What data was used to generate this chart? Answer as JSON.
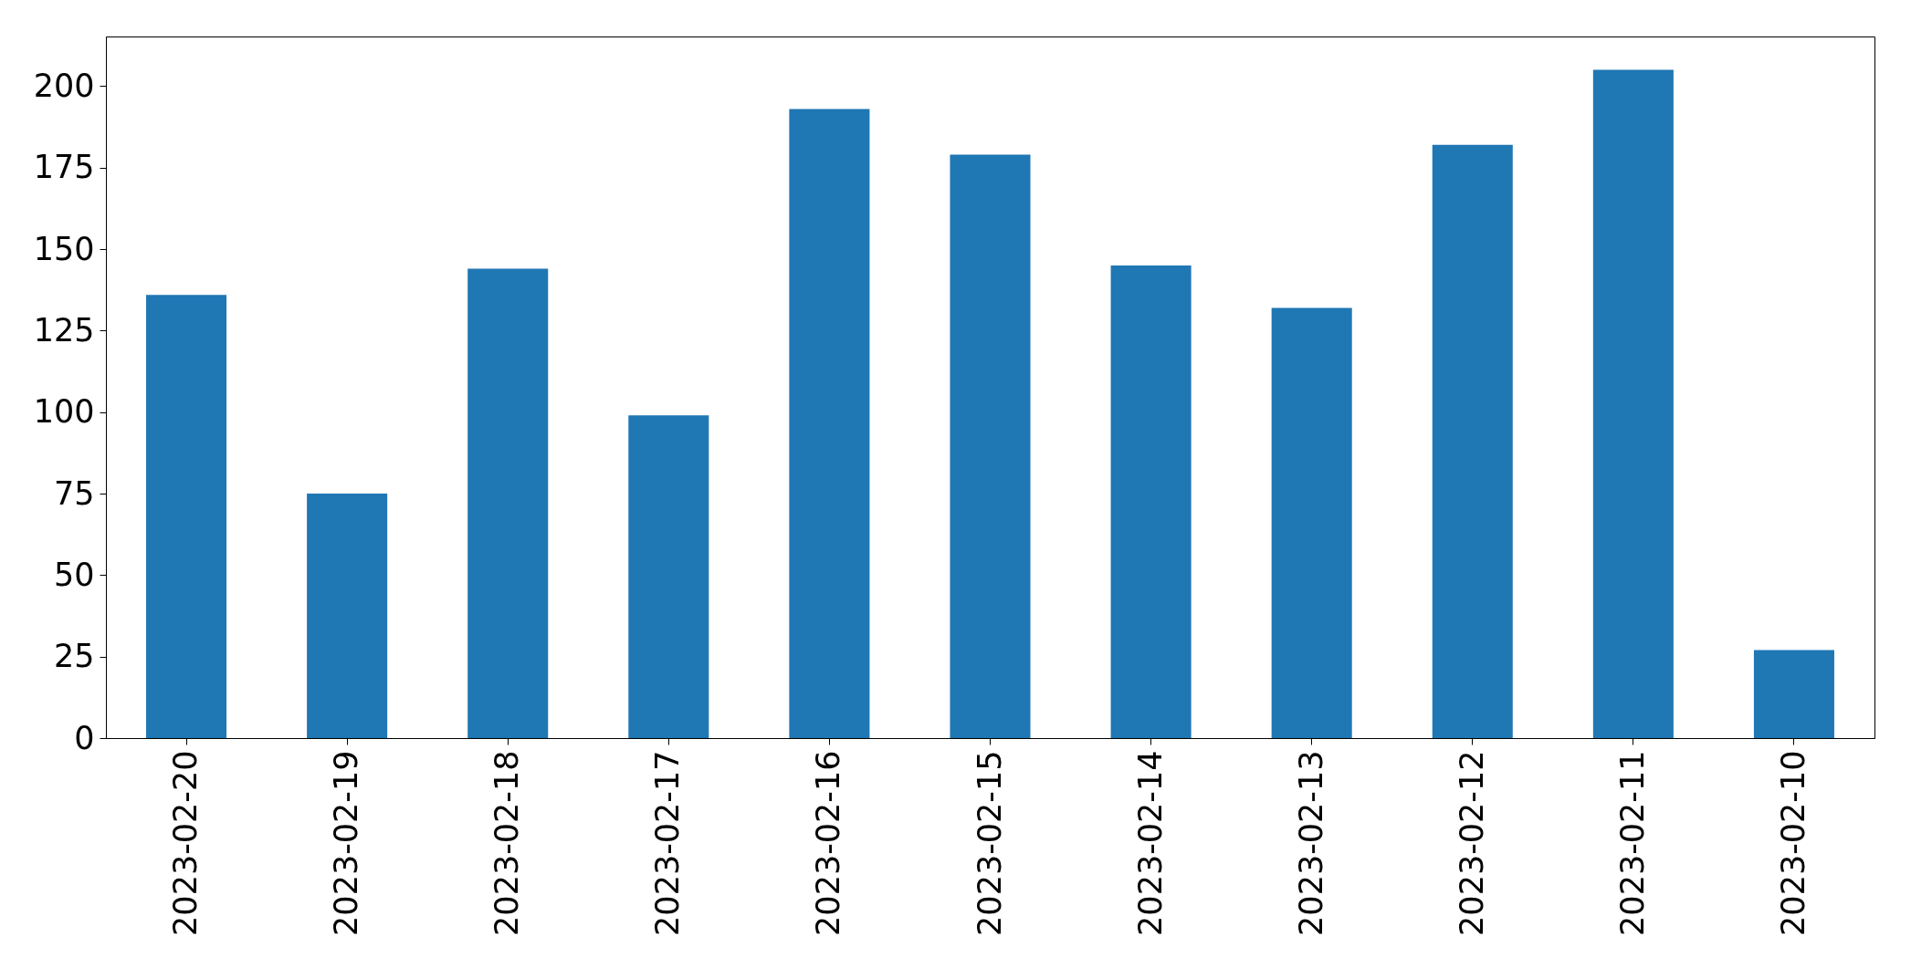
{
  "chart_data": {
    "type": "bar",
    "categories": [
      "2023-02-20",
      "2023-02-19",
      "2023-02-18",
      "2023-02-17",
      "2023-02-16",
      "2023-02-15",
      "2023-02-14",
      "2023-02-13",
      "2023-02-12",
      "2023-02-11",
      "2023-02-10"
    ],
    "values": [
      136,
      75,
      144,
      99,
      193,
      179,
      145,
      132,
      182,
      205,
      27
    ],
    "color": "#1f77b4",
    "ylim": [
      0,
      215.25
    ],
    "yticks": [
      0,
      25,
      50,
      75,
      100,
      125,
      150,
      175,
      200
    ]
  }
}
